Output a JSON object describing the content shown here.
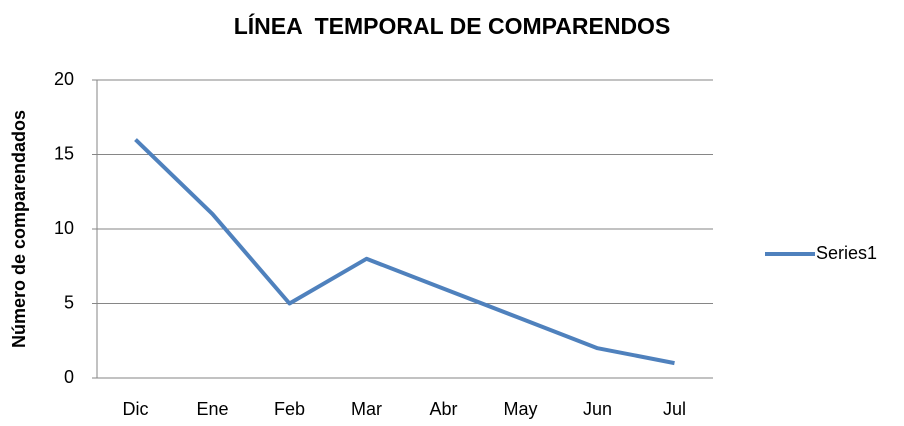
{
  "chart_data": {
    "type": "line",
    "title": "LÍNEA  TEMPORAL DE COMPARENDOS",
    "y_label": "Número de comparendados",
    "categories": [
      "Dic",
      "Ene",
      "Feb",
      "Mar",
      "Abr",
      "May",
      "Jun",
      "Jul"
    ],
    "series": [
      {
        "name": "Series1",
        "color": "#4f81bd",
        "values": [
          16,
          11,
          5,
          8,
          6,
          4,
          2,
          1
        ]
      }
    ],
    "ylim": [
      0,
      20
    ],
    "yticks": [
      0,
      5,
      10,
      15,
      20
    ],
    "grid": true,
    "legend": "right"
  }
}
